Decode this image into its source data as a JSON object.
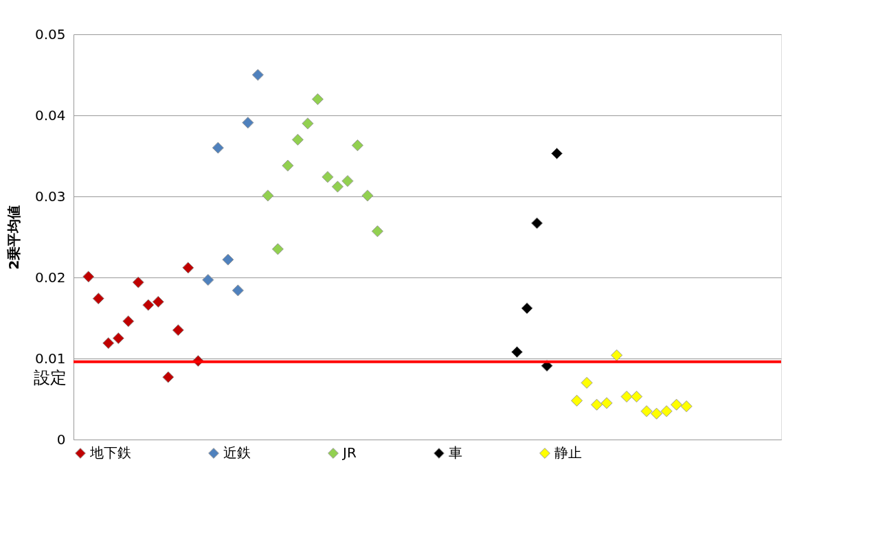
{
  "chart_data": {
    "type": "scatter",
    "ylabel": "2乗平均値",
    "categories": [
      null,
      null,
      null,
      null,
      null,
      null,
      null,
      null,
      null,
      null,
      null,
      null,
      null,
      null,
      null,
      null,
      null,
      null,
      null,
      null,
      null,
      null,
      null,
      null,
      null,
      null,
      null,
      null,
      null,
      null,
      null,
      null,
      null,
      null,
      null,
      null,
      null,
      null,
      null,
      null,
      null,
      null,
      null,
      null,
      null,
      null,
      null,
      null,
      null,
      null,
      null,
      null,
      null,
      null,
      null,
      null,
      null,
      null,
      null,
      null,
      null,
      null,
      null,
      null,
      null,
      null,
      null,
      null,
      null,
      null,
      null
    ],
    "series": [
      {
        "name": "地下鉄",
        "color": "#c00000",
        "values": [
          null,
          0.0201,
          0.0174,
          0.0119,
          0.0125,
          0.0146,
          0.0194,
          0.0166,
          0.017,
          0.0077,
          0.0135,
          0.0212,
          0.0097,
          null,
          null,
          null,
          null,
          null,
          null,
          null,
          null,
          null,
          null,
          null,
          null,
          null,
          null,
          null,
          null,
          null,
          null,
          null,
          null,
          null,
          null,
          null,
          null,
          null,
          null,
          null,
          null,
          null,
          null,
          null,
          null,
          null,
          null,
          null,
          null,
          null,
          null,
          null,
          null,
          null,
          null,
          null,
          null,
          null,
          null,
          null,
          null,
          null,
          null,
          null,
          null,
          null,
          null,
          null,
          null,
          null,
          null
        ]
      },
      {
        "name": "近鉄",
        "color": "#4f81bd",
        "values": [
          null,
          null,
          null,
          null,
          null,
          null,
          null,
          null,
          null,
          null,
          null,
          null,
          null,
          0.0197,
          0.036,
          0.0222,
          0.0184,
          0.0391,
          0.045,
          null,
          null,
          null,
          null,
          null,
          null,
          null,
          null,
          null,
          null,
          null,
          null,
          null,
          null,
          null,
          null,
          null,
          null,
          null,
          null,
          null,
          null,
          null,
          null,
          null,
          null,
          null,
          null,
          null,
          null,
          null,
          null,
          null,
          null,
          null,
          null,
          null,
          null,
          null,
          null,
          null,
          null,
          null,
          null,
          null,
          null,
          null,
          null,
          null,
          null,
          null,
          null
        ]
      },
      {
        "name": "JR",
        "color": "#92d050",
        "values": [
          null,
          null,
          null,
          null,
          null,
          null,
          null,
          null,
          null,
          null,
          null,
          null,
          null,
          null,
          null,
          null,
          null,
          null,
          null,
          0.0301,
          0.0235,
          0.0338,
          0.037,
          0.039,
          0.042,
          0.0324,
          0.0312,
          0.0319,
          0.0363,
          0.0301,
          0.0257,
          null,
          null,
          null,
          null,
          null,
          null,
          null,
          null,
          null,
          null,
          null,
          null,
          null,
          null,
          null,
          null,
          null,
          null,
          null,
          null,
          null,
          null,
          null,
          null,
          null,
          null,
          null,
          null,
          null,
          null,
          null,
          null,
          null,
          null,
          null,
          null,
          null,
          null,
          null,
          null
        ]
      },
      {
        "name": "車",
        "color": "#000000",
        "values": [
          null,
          null,
          null,
          null,
          null,
          null,
          null,
          null,
          null,
          null,
          null,
          null,
          null,
          null,
          null,
          null,
          null,
          null,
          null,
          null,
          null,
          null,
          null,
          null,
          null,
          null,
          null,
          null,
          null,
          null,
          null,
          null,
          null,
          null,
          null,
          null,
          null,
          null,
          null,
          null,
          null,
          null,
          null,
          null,
          0.0108,
          0.0162,
          0.0267,
          0.0091,
          0.0353,
          null,
          null,
          null,
          null,
          null,
          null,
          null,
          null,
          null,
          null,
          null,
          null,
          null,
          null,
          null,
          null,
          null,
          null,
          null,
          null,
          null,
          null
        ]
      },
      {
        "name": "静止",
        "color": "#ffff00",
        "values": [
          null,
          null,
          null,
          null,
          null,
          null,
          null,
          null,
          null,
          null,
          null,
          null,
          null,
          null,
          null,
          null,
          null,
          null,
          null,
          null,
          null,
          null,
          null,
          null,
          null,
          null,
          null,
          null,
          null,
          null,
          null,
          null,
          null,
          null,
          null,
          null,
          null,
          null,
          null,
          null,
          null,
          null,
          null,
          null,
          null,
          null,
          null,
          null,
          null,
          null,
          0.0048,
          0.007,
          0.0043,
          0.0045,
          0.0104,
          0.0053,
          0.0053,
          0.0035,
          0.0032,
          0.0035,
          0.0043,
          0.0041,
          null,
          null,
          null,
          null,
          null,
          null,
          null,
          null,
          null
        ]
      }
    ],
    "ylim": [
      0,
      0.05
    ],
    "yticks": [
      0,
      0.01,
      0.02,
      0.03,
      0.04,
      0.05
    ],
    "ref_lines": [
      {
        "axis": "y",
        "value": 0.0096,
        "label": "設定",
        "color": "#ff0000"
      }
    ],
    "grid": "y",
    "legend": "bottom",
    "marker": "diamond",
    "tick_labels": "y"
  }
}
